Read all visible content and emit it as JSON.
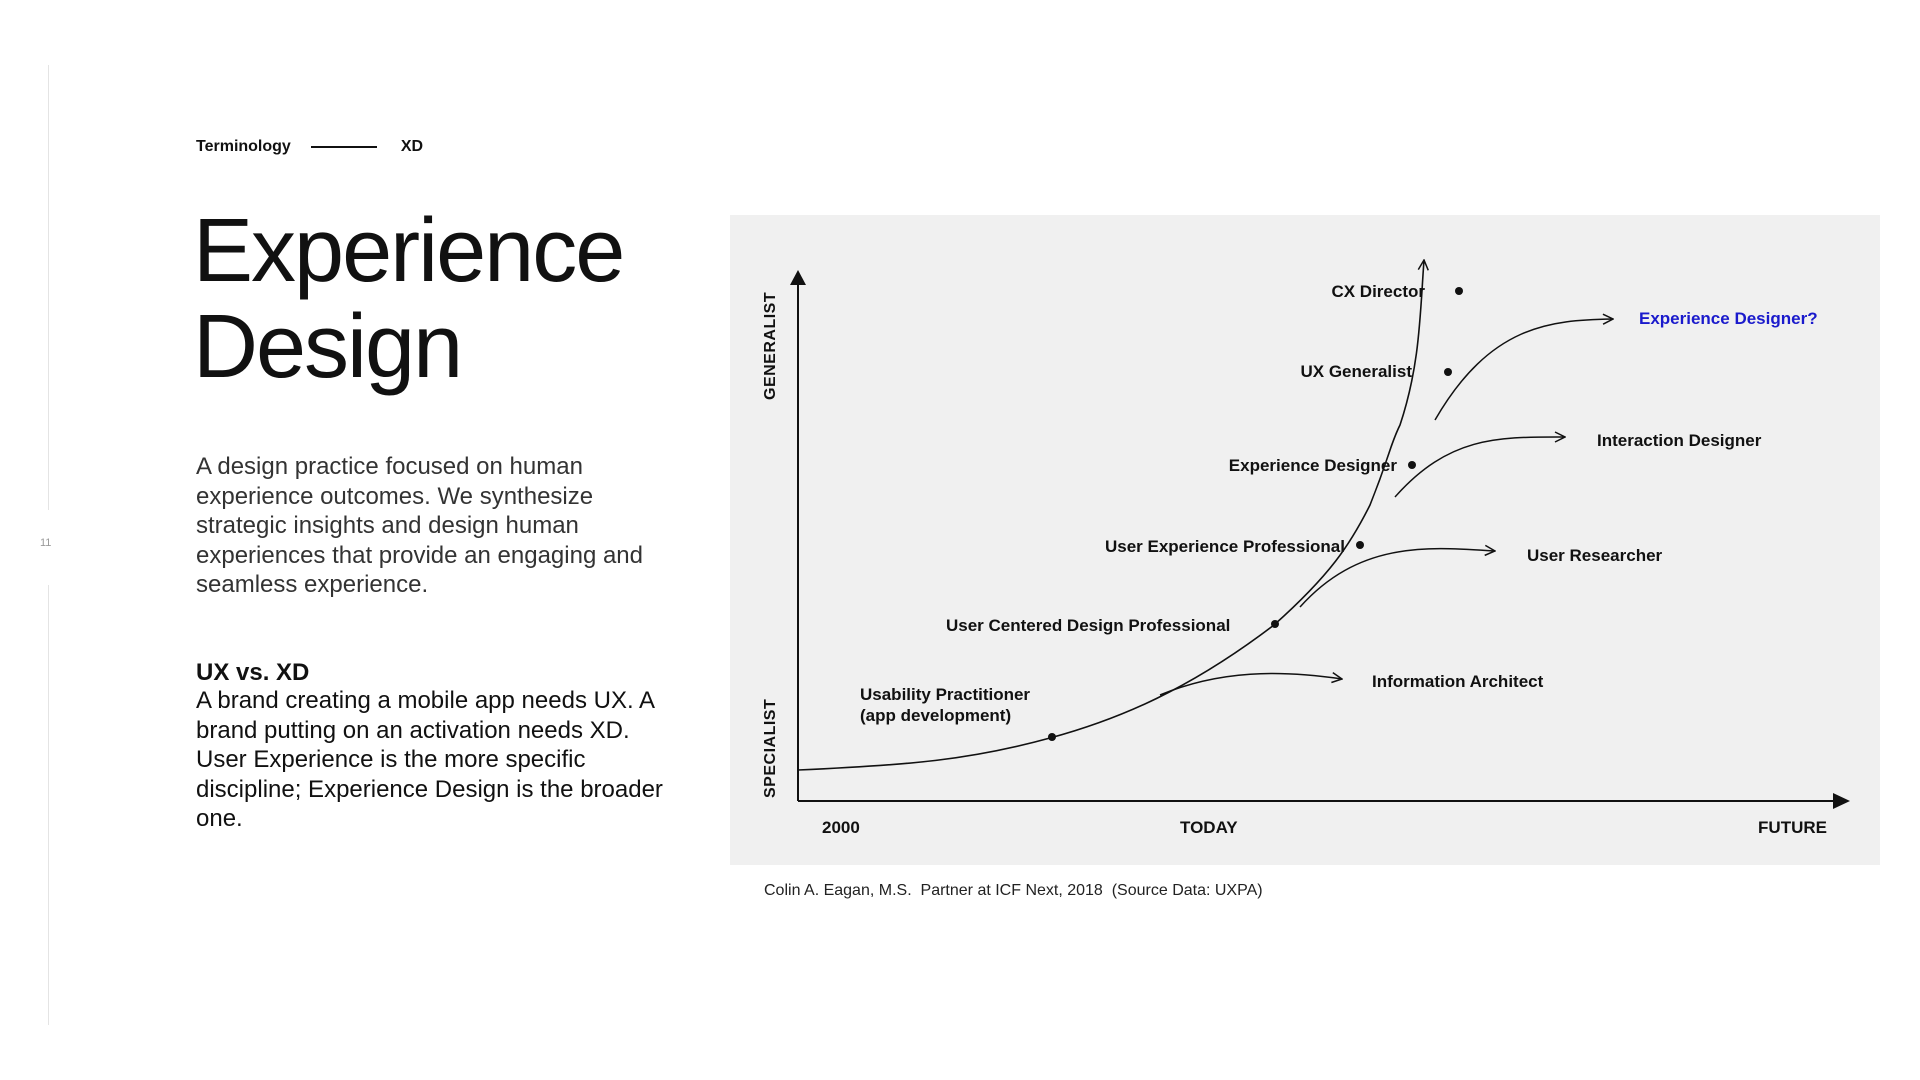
{
  "page": {
    "number": "11"
  },
  "breadcrumb": {
    "section": "Terminology",
    "topic": "XD"
  },
  "title": {
    "line1": "Experience",
    "line2": "Design"
  },
  "intro": "A design practice focused on human experience outcomes. We synthesize strategic insights and design human experiences that provide an engaging and seamless experience.",
  "comparison": {
    "heading": "UX vs. XD",
    "body": "A brand creating a mobile app needs UX. A brand putting on an activation needs XD. User Experience is the more specific discipline; Experience Design is the broader one."
  },
  "diagram": {
    "y_axis": {
      "top": "GENERALIST",
      "bottom": "SPECIALIST"
    },
    "x_axis": {
      "ticks": [
        "2000",
        "TODAY",
        "FUTURE"
      ]
    },
    "milestones": [
      {
        "lines": [
          "Usability Practitioner",
          "(app development)"
        ]
      },
      {
        "lines": [
          "User Centered Design Professional"
        ]
      },
      {
        "lines": [
          "User Experience Professional"
        ]
      },
      {
        "lines": [
          "Experience Designer"
        ]
      },
      {
        "lines": [
          "UX Generalist"
        ]
      },
      {
        "lines": [
          "CX Director"
        ]
      }
    ],
    "branches": [
      {
        "label": "Information Architect",
        "highlight": false
      },
      {
        "label": "User Researcher",
        "highlight": false
      },
      {
        "label": "Interaction Designer",
        "highlight": false
      },
      {
        "label": "Experience Designer?",
        "highlight": true
      }
    ],
    "colors": {
      "ink": "#111111",
      "highlight": "#1a1acc",
      "panel": "#f0f0f0"
    }
  },
  "caption": "Colin A. Eagan, M.S.  Partner at ICF Next, 2018  (Source Data: UXPA)"
}
